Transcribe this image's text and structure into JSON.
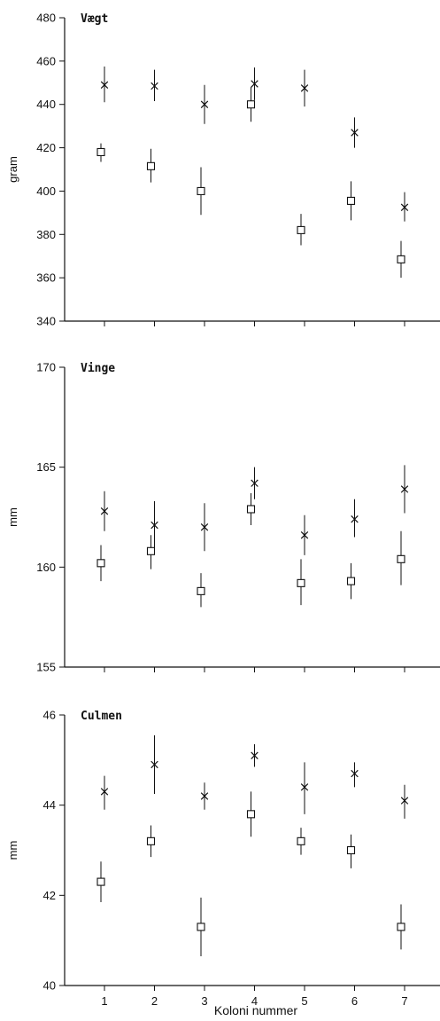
{
  "chart_data": [
    {
      "type": "scatter",
      "title": "Vægt",
      "ylabel": "gram",
      "ylim": [
        340,
        480
      ],
      "yticks": [
        340,
        360,
        380,
        400,
        420,
        440,
        460,
        480
      ],
      "x": [
        1,
        2,
        3,
        4,
        5,
        6,
        7
      ],
      "series": [
        {
          "marker": "x",
          "values": [
            449,
            448.5,
            440,
            449.5,
            447.5,
            427,
            392.5
          ],
          "err_low": [
            441,
            441.5,
            431,
            442,
            439,
            420,
            386
          ],
          "err_high": [
            457.5,
            456,
            449,
            457,
            456,
            434,
            399.5
          ]
        },
        {
          "marker": "square",
          "values": [
            418,
            411.5,
            400,
            440,
            382,
            395.5,
            368.5
          ],
          "err_low": [
            413.5,
            404,
            389,
            432,
            375,
            386.5,
            360
          ],
          "err_high": [
            422,
            419.5,
            411,
            448,
            389.5,
            404.5,
            377
          ]
        }
      ]
    },
    {
      "type": "scatter",
      "title": "Vinge",
      "ylabel": "mm",
      "ylim": [
        155,
        170
      ],
      "yticks": [
        155,
        160,
        165,
        170
      ],
      "x": [
        1,
        2,
        3,
        4,
        5,
        6,
        7
      ],
      "series": [
        {
          "marker": "x",
          "values": [
            162.8,
            162.1,
            162,
            164.2,
            161.6,
            162.4,
            163.9
          ],
          "err_low": [
            161.8,
            160.9,
            160.8,
            163.4,
            160.6,
            161.5,
            162.7
          ],
          "err_high": [
            163.8,
            163.3,
            163.2,
            165,
            162.6,
            163.4,
            165.1
          ]
        },
        {
          "marker": "square",
          "values": [
            160.2,
            160.8,
            158.8,
            162.9,
            159.2,
            159.3,
            160.4
          ],
          "err_low": [
            159.3,
            159.9,
            158,
            162.1,
            158.1,
            158.4,
            159.1
          ],
          "err_high": [
            161.1,
            161.6,
            159.7,
            163.7,
            160.4,
            160.2,
            161.8
          ]
        }
      ]
    },
    {
      "type": "scatter",
      "title": "Culmen",
      "ylabel": "mm",
      "xlabel": "Koloni nummer",
      "ylim": [
        40,
        46
      ],
      "yticks": [
        40,
        42,
        44,
        46
      ],
      "x": [
        1,
        2,
        3,
        4,
        5,
        6,
        7
      ],
      "xticks": [
        "1",
        "2",
        "3",
        "4",
        "5",
        "6",
        "7"
      ],
      "series": [
        {
          "marker": "x",
          "values": [
            44.3,
            44.9,
            44.2,
            45.1,
            44.4,
            44.7,
            44.1
          ],
          "err_low": [
            43.9,
            44.25,
            43.9,
            44.85,
            43.8,
            44.4,
            43.7
          ],
          "err_high": [
            44.65,
            45.55,
            44.5,
            45.35,
            44.95,
            44.95,
            44.45
          ]
        },
        {
          "marker": "square",
          "values": [
            42.3,
            43.2,
            41.3,
            43.8,
            43.2,
            43,
            41.3
          ],
          "err_low": [
            41.85,
            42.85,
            40.65,
            43.3,
            42.9,
            42.6,
            40.8
          ],
          "err_high": [
            42.75,
            43.55,
            41.95,
            44.3,
            43.5,
            43.35,
            41.8
          ]
        }
      ]
    }
  ]
}
